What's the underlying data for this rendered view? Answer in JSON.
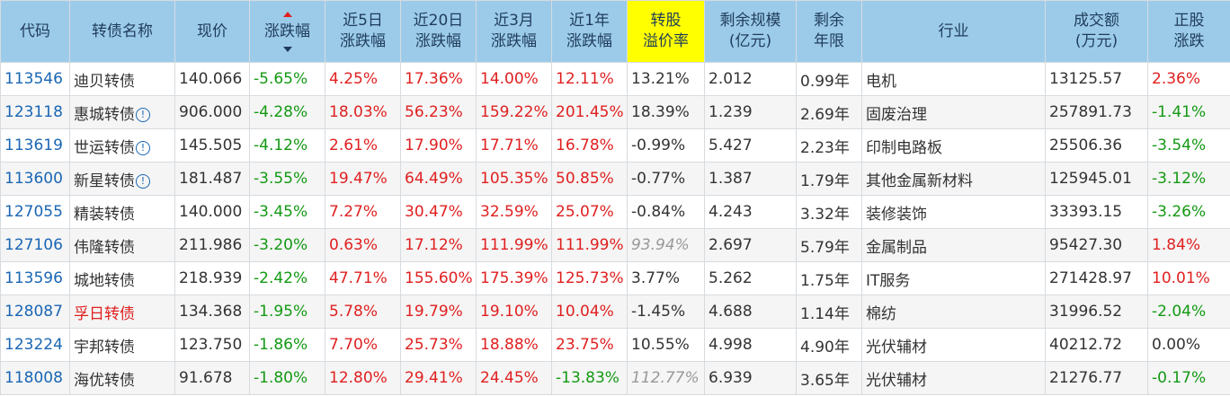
{
  "columns": {
    "code": "代码",
    "name": "转债名称",
    "price": "现价",
    "change": "涨跌幅",
    "d5": [
      "近5日",
      "涨跌幅"
    ],
    "d20": [
      "近20日",
      "涨跌幅"
    ],
    "m3": [
      "近3月",
      "涨跌幅"
    ],
    "y1": [
      "近1年",
      "涨跌幅"
    ],
    "premium": [
      "转股",
      "溢价率"
    ],
    "scale": [
      "剩余规模",
      "(亿元)"
    ],
    "years": [
      "剩余",
      "年限"
    ],
    "industry": "行业",
    "volume": [
      "成交额",
      "(万元)"
    ],
    "stock": [
      "正股",
      "涨跌"
    ]
  },
  "rows": [
    {
      "code": "113546",
      "name": "迪贝转债",
      "info": false,
      "name_red": false,
      "price": "140.066",
      "change": "-5.65%",
      "d5": "4.25%",
      "d20": "17.36%",
      "m3": "14.00%",
      "y1": "12.11%",
      "premium": "13.21%",
      "premium_italic": false,
      "scale": "2.012",
      "years": "0.99年",
      "industry": "电机",
      "volume": "13125.57",
      "stock": "2.36%"
    },
    {
      "code": "123118",
      "name": "惠城转债",
      "info": true,
      "name_red": false,
      "price": "906.000",
      "change": "-4.28%",
      "d5": "18.03%",
      "d20": "56.23%",
      "m3": "159.22%",
      "y1": "201.45%",
      "premium": "18.39%",
      "premium_italic": false,
      "scale": "1.239",
      "years": "2.69年",
      "industry": "固废治理",
      "volume": "257891.73",
      "stock": "-1.41%"
    },
    {
      "code": "113619",
      "name": "世运转债",
      "info": true,
      "name_red": false,
      "price": "145.505",
      "change": "-4.12%",
      "d5": "2.61%",
      "d20": "17.90%",
      "m3": "17.71%",
      "y1": "16.78%",
      "premium": "-0.99%",
      "premium_italic": false,
      "scale": "5.427",
      "years": "2.23年",
      "industry": "印制电路板",
      "volume": "25506.36",
      "stock": "-3.54%"
    },
    {
      "code": "113600",
      "name": "新星转债",
      "info": true,
      "name_red": false,
      "price": "181.487",
      "change": "-3.55%",
      "d5": "19.47%",
      "d20": "64.49%",
      "m3": "105.35%",
      "y1": "50.85%",
      "premium": "-0.77%",
      "premium_italic": false,
      "scale": "1.387",
      "years": "1.79年",
      "industry": "其他金属新材料",
      "volume": "125945.01",
      "stock": "-3.12%"
    },
    {
      "code": "127055",
      "name": "精装转债",
      "info": false,
      "name_red": false,
      "price": "140.000",
      "change": "-3.45%",
      "d5": "7.27%",
      "d20": "30.47%",
      "m3": "32.59%",
      "y1": "25.07%",
      "premium": "-0.84%",
      "premium_italic": false,
      "scale": "4.243",
      "years": "3.32年",
      "industry": "装修装饰",
      "volume": "33393.15",
      "stock": "-3.26%"
    },
    {
      "code": "127106",
      "name": "伟隆转债",
      "info": false,
      "name_red": false,
      "price": "211.986",
      "change": "-3.20%",
      "d5": "0.63%",
      "d20": "17.12%",
      "m3": "111.99%",
      "y1": "111.99%",
      "premium": "93.94%",
      "premium_italic": true,
      "scale": "2.697",
      "years": "5.79年",
      "industry": "金属制品",
      "volume": "95427.30",
      "stock": "1.84%"
    },
    {
      "code": "113596",
      "name": "城地转债",
      "info": false,
      "name_red": false,
      "price": "218.939",
      "change": "-2.42%",
      "d5": "47.71%",
      "d20": "155.60%",
      "m3": "175.39%",
      "y1": "125.73%",
      "premium": "3.77%",
      "premium_italic": false,
      "scale": "5.262",
      "years": "1.75年",
      "industry": "IT服务",
      "volume": "271428.97",
      "stock": "10.01%"
    },
    {
      "code": "128087",
      "name": "孚日转债",
      "info": false,
      "name_red": true,
      "price": "134.368",
      "change": "-1.95%",
      "d5": "5.78%",
      "d20": "19.79%",
      "m3": "19.10%",
      "y1": "10.04%",
      "premium": "-1.45%",
      "premium_italic": false,
      "scale": "4.688",
      "years": "1.14年",
      "industry": "棉纺",
      "volume": "31996.52",
      "stock": "-2.04%"
    },
    {
      "code": "123224",
      "name": "宇邦转债",
      "info": false,
      "name_red": false,
      "price": "123.750",
      "change": "-1.86%",
      "d5": "7.70%",
      "d20": "25.73%",
      "m3": "18.88%",
      "y1": "23.75%",
      "premium": "10.55%",
      "premium_italic": false,
      "scale": "4.998",
      "years": "4.90年",
      "industry": "光伏辅材",
      "volume": "40212.72",
      "stock": "0.00%"
    },
    {
      "code": "118008",
      "name": "海优转债",
      "info": false,
      "name_red": false,
      "price": "91.678",
      "change": "-1.80%",
      "d5": "12.80%",
      "d20": "29.41%",
      "m3": "24.45%",
      "y1": "-13.83%",
      "premium": "112.77%",
      "premium_italic": true,
      "scale": "6.939",
      "years": "3.65年",
      "industry": "光伏辅材",
      "volume": "21276.77",
      "stock": "-0.17%"
    }
  ],
  "colors": {
    "header_bg": "#9ccbea",
    "highlight_bg": "#ffff00",
    "up": "#e02020",
    "down": "#139913",
    "code": "#1a66b3"
  },
  "icons": {
    "info": "info-circle-icon",
    "sort": "sort-desc-icon"
  }
}
